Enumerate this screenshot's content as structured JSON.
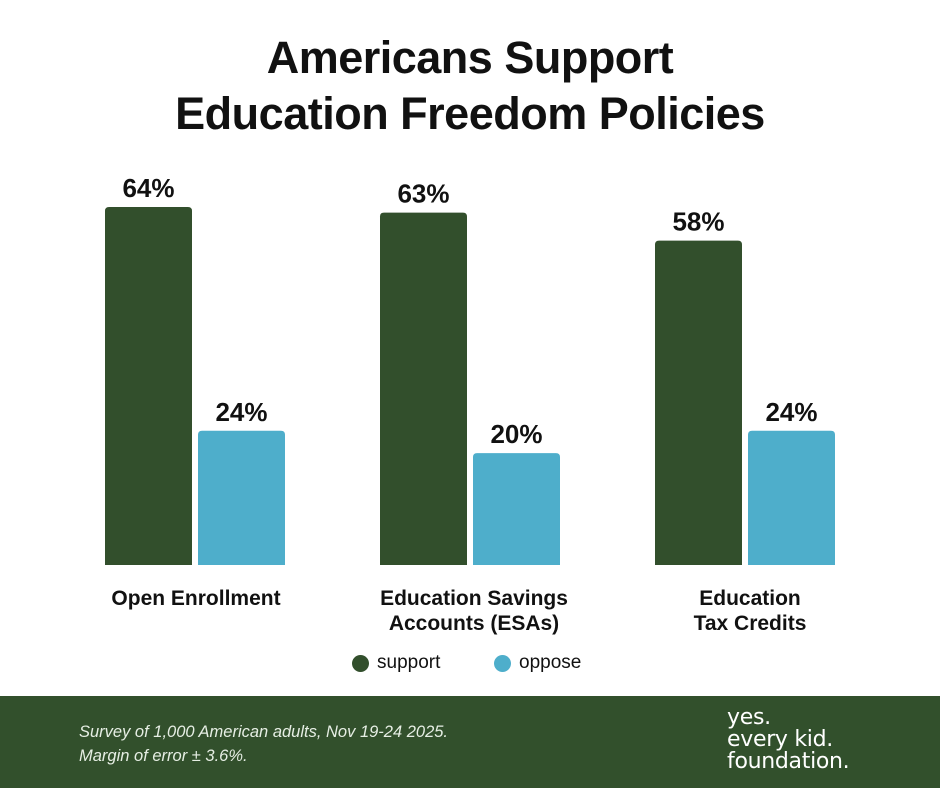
{
  "title_lines": [
    "Americans Support",
    "Education Freedom Policies"
  ],
  "colors": {
    "support": "#324f2c",
    "oppose": "#4eaecb",
    "footer": "#32502c"
  },
  "chart_data": {
    "type": "bar",
    "categories": [
      [
        "Open Enrollment"
      ],
      [
        "Education Savings",
        "Accounts (ESAs)"
      ],
      [
        "Education",
        "Tax Credits"
      ]
    ],
    "series": [
      {
        "name": "support",
        "values": [
          64,
          63,
          58
        ],
        "labels": [
          "64%",
          "63%",
          "58%"
        ]
      },
      {
        "name": "oppose",
        "values": [
          24,
          20,
          24
        ],
        "labels": [
          "24%",
          "20%",
          "24%"
        ]
      }
    ],
    "ylim": [
      0,
      64
    ],
    "grid": false,
    "legend": "bottom-center"
  },
  "footer": {
    "note_lines": [
      "Survey of 1,000 American adults, Nov 19-24 2025.",
      "Margin of error ± 3.6%."
    ],
    "logo_lines": [
      "yes.",
      "every kid.",
      "foundation."
    ]
  }
}
